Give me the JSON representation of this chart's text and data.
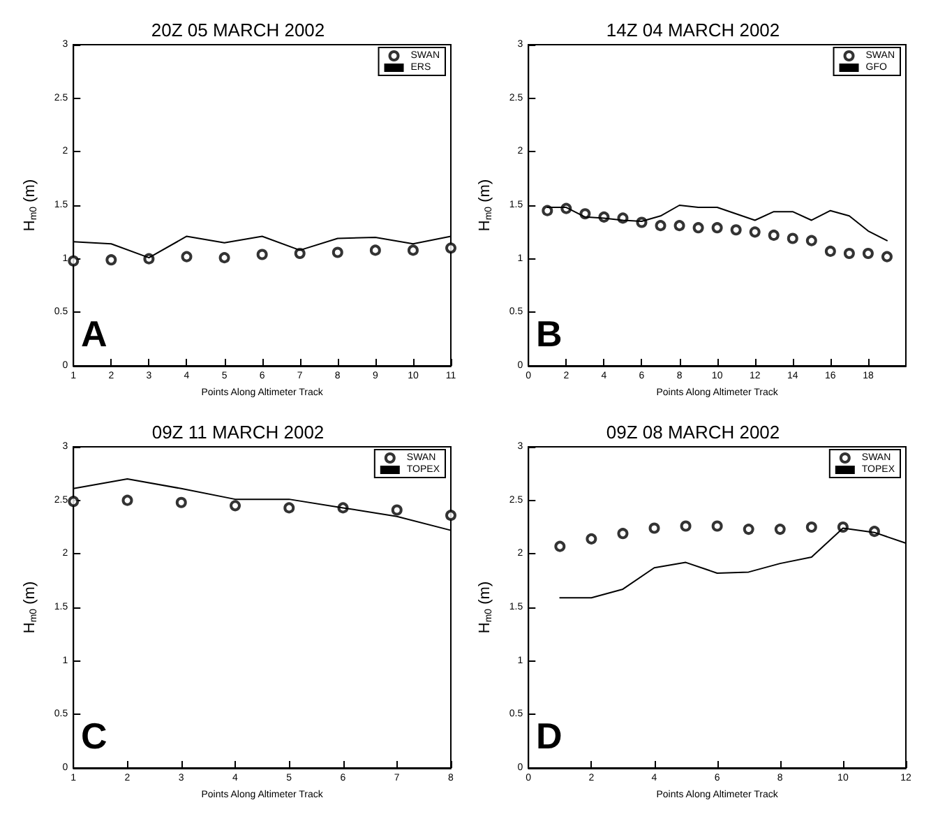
{
  "chart_data": [
    {
      "type": "scatter",
      "title": "20Z 05 MARCH 2002",
      "xlabel": "Points Along Altimeter Track",
      "ylabel": "H$_{m0}$ (m)",
      "annotations": [
        "A"
      ],
      "legend": "top right",
      "xlim": [
        1,
        11
      ],
      "xticks": [
        1,
        2,
        3,
        4,
        5,
        6,
        7,
        8,
        9,
        10,
        11
      ],
      "ylim": [
        0,
        3
      ],
      "yticks": [
        0,
        0.5,
        1,
        1.5,
        2,
        2.5,
        3
      ],
      "x": [
        1,
        2,
        3,
        4,
        5,
        6,
        7,
        8,
        9,
        10,
        11
      ],
      "series": [
        {
          "name": "SWAN",
          "marker": "circle",
          "color": "#000000",
          "values": [
            0.98,
            0.99,
            1.0,
            1.02,
            1.01,
            1.04,
            1.05,
            1.06,
            1.08,
            1.08,
            1.1
          ]
        },
        {
          "name": "ERS",
          "type": "line",
          "marker": "none",
          "line_style": "solid",
          "color": "#000000",
          "values": [
            1.16,
            1.14,
            1.01,
            1.21,
            1.15,
            1.21,
            1.08,
            1.19,
            1.2,
            1.14,
            1.21
          ]
        }
      ]
    },
    {
      "type": "scatter",
      "title": "14Z 04 MARCH 2002",
      "xlabel": "Points Along Altimeter Track",
      "ylabel": "H$_{m0}$ (m)",
      "annotations": [
        "B"
      ],
      "legend": "top right",
      "xlim": [
        0,
        20
      ],
      "xticks": [
        0,
        2,
        4,
        6,
        8,
        10,
        12,
        14,
        16,
        18
      ],
      "ylim": [
        0,
        3
      ],
      "yticks": [
        0,
        0.5,
        1,
        1.5,
        2,
        2.5,
        3
      ],
      "x": [
        1,
        2,
        3,
        4,
        5,
        6,
        7,
        8,
        9,
        10,
        11,
        12,
        13,
        14,
        15,
        16,
        17,
        18,
        19
      ],
      "series": [
        {
          "name": "SWAN",
          "marker": "circle",
          "color": "#000000",
          "values": [
            1.45,
            1.47,
            1.42,
            1.39,
            1.38,
            1.34,
            1.31,
            1.31,
            1.29,
            1.29,
            1.27,
            1.25,
            1.22,
            1.19,
            1.17,
            1.07,
            1.05,
            1.05,
            1.02
          ]
        },
        {
          "name": "GFO",
          "type": "line",
          "marker": "none",
          "line_style": "solid",
          "color": "#000000",
          "values": [
            1.48,
            1.48,
            1.39,
            1.38,
            1.36,
            1.35,
            1.4,
            1.5,
            1.48,
            1.48,
            1.42,
            1.36,
            1.44,
            1.44,
            1.36,
            1.45,
            1.4,
            1.26,
            1.17
          ]
        }
      ]
    },
    {
      "type": "scatter",
      "title": "09Z 11 MARCH 2002",
      "xlabel": "Points Along Altimeter Track",
      "ylabel": "H$_{m0}$ (m)",
      "annotations": [
        "C"
      ],
      "legend": "top right",
      "xlim": [
        1,
        8
      ],
      "xticks": [
        1,
        2,
        3,
        4,
        5,
        6,
        7,
        8
      ],
      "ylim": [
        0,
        3
      ],
      "yticks": [
        0,
        0.5,
        1,
        1.5,
        2,
        2.5,
        3
      ],
      "x": [
        1,
        2,
        3,
        4,
        5,
        6,
        7,
        8
      ],
      "series": [
        {
          "name": "SWAN",
          "marker": "circle",
          "color": "#000000",
          "values": [
            2.49,
            2.5,
            2.48,
            2.45,
            2.43,
            2.43,
            2.41,
            2.36
          ]
        },
        {
          "name": "TOPEX",
          "type": "line",
          "marker": "none",
          "line_style": "solid",
          "color": "#000000",
          "values": [
            2.61,
            2.7,
            2.61,
            2.51,
            2.51,
            2.43,
            2.35,
            2.22
          ]
        }
      ]
    },
    {
      "type": "scatter",
      "title": "09Z 08 MARCH 2002",
      "xlabel": "Points Along Altimeter Track",
      "ylabel": "H$_{m0}$ (m)",
      "annotations": [
        "D"
      ],
      "legend": "top right",
      "xlim": [
        0,
        12
      ],
      "xticks": [
        0,
        2,
        4,
        6,
        8,
        10,
        12
      ],
      "ylim": [
        0,
        3
      ],
      "yticks": [
        0,
        0.5,
        1,
        1.5,
        2,
        2.5,
        3
      ],
      "x": [
        1,
        2,
        3,
        4,
        5,
        6,
        7,
        8,
        9,
        10,
        11,
        12
      ],
      "series": [
        {
          "name": "SWAN",
          "marker": "circle",
          "color": "#000000",
          "values": [
            2.07,
            2.14,
            2.19,
            2.24,
            2.26,
            2.26,
            2.23,
            2.23,
            2.25,
            2.25,
            2.21,
            null
          ]
        },
        {
          "name": "TOPEX",
          "type": "line",
          "marker": "none",
          "line_style": "solid",
          "color": "#000000",
          "values": [
            1.59,
            1.59,
            1.67,
            1.87,
            1.92,
            1.82,
            1.83,
            1.91,
            1.97,
            2.24,
            2.2,
            2.1
          ]
        }
      ]
    }
  ]
}
